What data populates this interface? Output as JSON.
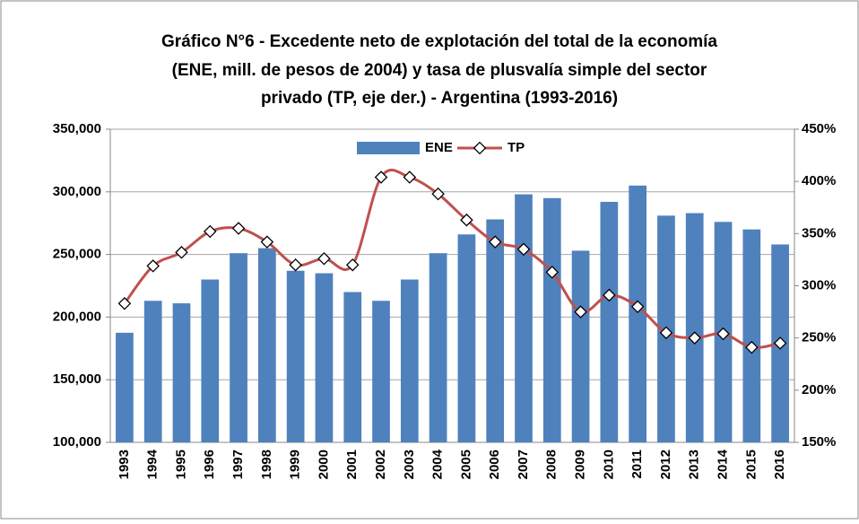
{
  "chart_data": {
    "type": "bar_line",
    "title": [
      "Gráfico N°6  - Excedente neto de explotación del total de la economía",
      "(ENE, mill. de pesos de 2004) y tasa de plusvalía simple del sector",
      "privado (TP, eje der.) - Argentina (1993-2016)"
    ],
    "categories": [
      "1993",
      "1994",
      "1995",
      "1996",
      "1997",
      "1998",
      "1999",
      "2000",
      "2001",
      "2002",
      "2003",
      "2004",
      "2005",
      "2006",
      "2007",
      "2008",
      "2009",
      "2010",
      "2011",
      "2012",
      "2013",
      "2014",
      "2015",
      "2016"
    ],
    "series": [
      {
        "name": "ENE",
        "color": "#4f81bd",
        "type": "bar",
        "values": [
          187500,
          213000,
          211000,
          230000,
          251000,
          255000,
          237000,
          235000,
          220000,
          213000,
          230000,
          251000,
          266000,
          278000,
          298000,
          295000,
          253000,
          292000,
          305000,
          281000,
          283000,
          276000,
          270000,
          258000
        ]
      },
      {
        "name": "TP",
        "color": "#c0504d",
        "type": "line",
        "axis": "y2",
        "values": [
          283,
          319,
          332,
          352,
          355,
          342,
          320,
          326,
          320,
          404,
          404,
          388,
          363,
          342,
          335,
          313,
          275,
          291,
          280,
          255,
          250,
          254,
          241,
          245
        ]
      }
    ],
    "ylim": [
      100000,
      350000
    ],
    "yticks": [
      {
        "value": 100000,
        "label": "100,000"
      },
      {
        "value": 150000,
        "label": "150,000"
      },
      {
        "value": 200000,
        "label": "200,000"
      },
      {
        "value": 250000,
        "label": "250,000"
      },
      {
        "value": 300000,
        "label": "300,000"
      },
      {
        "value": 350000,
        "label": "350,000"
      }
    ],
    "y2lim": [
      150,
      450
    ],
    "y2ticks": [
      {
        "value": 150,
        "label": "150%"
      },
      {
        "value": 200,
        "label": "200%"
      },
      {
        "value": 250,
        "label": "250%"
      },
      {
        "value": 300,
        "label": "300%"
      },
      {
        "value": 350,
        "label": "350%"
      },
      {
        "value": 400,
        "label": "400%"
      },
      {
        "value": 450,
        "label": "450%"
      }
    ],
    "grid": true,
    "legend": "top"
  }
}
